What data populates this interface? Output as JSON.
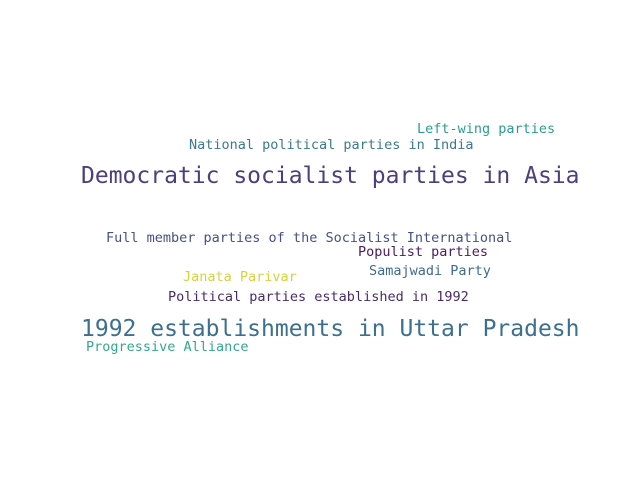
{
  "words": [
    {
      "text": "Left-wing parties",
      "color": "#2a9d8f"
    },
    {
      "text": "National political parties in India",
      "color": "#3b7a8f"
    },
    {
      "text": "Democratic socialist parties in Asia",
      "color": "#4b3f7e"
    },
    {
      "text": "Full member parties of the Socialist International",
      "color": "#46508a"
    },
    {
      "text": "Populist parties",
      "color": "#4a1c5a"
    },
    {
      "text": "Samajwadi Party",
      "color": "#3f6a8c"
    },
    {
      "text": "Janata Parivar",
      "color": "#d6d33a"
    },
    {
      "text": "Political parties established in 1992",
      "color": "#4a2a6a"
    },
    {
      "text": "1992 establishments in Uttar Pradesh",
      "color": "#3d6f8f"
    },
    {
      "text": "Progressive Alliance",
      "color": "#33a88a"
    }
  ]
}
